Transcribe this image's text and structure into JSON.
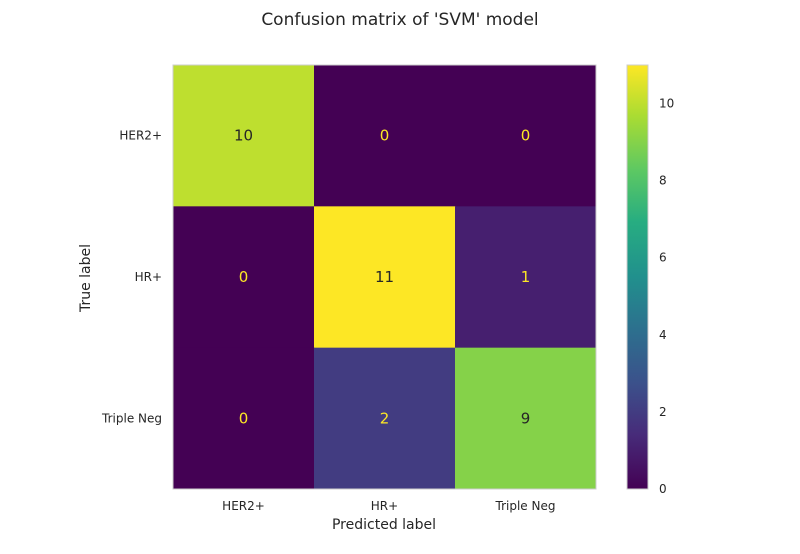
{
  "chart_data": {
    "type": "heatmap",
    "title": "Confusion matrix of 'SVM' model",
    "xlabel": "Predicted label",
    "ylabel": "True label",
    "x_categories": [
      "HER2+",
      "HR+",
      "Triple Neg"
    ],
    "y_categories": [
      "HER2+",
      "HR+",
      "Triple Neg"
    ],
    "matrix": [
      [
        10,
        0,
        0
      ],
      [
        0,
        11,
        1
      ],
      [
        0,
        2,
        9
      ]
    ],
    "colormap": "viridis",
    "vmin": 0,
    "vmax": 11,
    "colorbar_ticks": [
      0,
      2,
      4,
      6,
      8,
      10
    ],
    "grid": false
  }
}
